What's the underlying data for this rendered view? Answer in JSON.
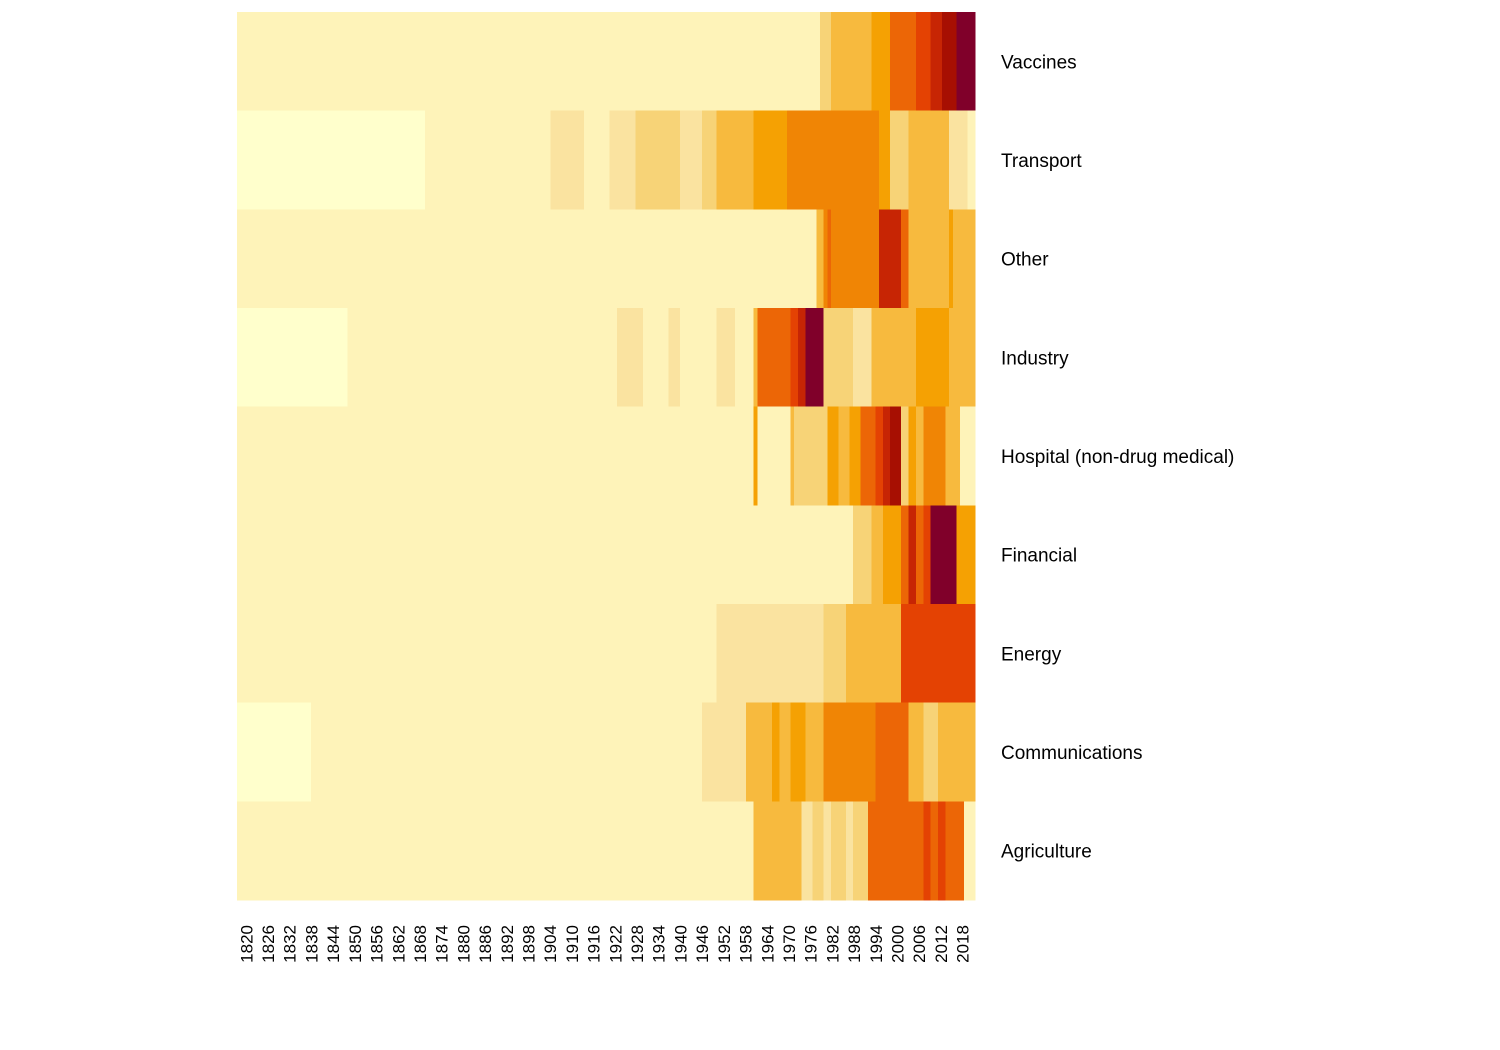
{
  "chart_data": {
    "type": "heatmap",
    "title": "",
    "xlabel": "",
    "ylabel": "",
    "x_start_year": 1820,
    "x_end_year": 2020,
    "x_tick_labels": [
      "1820",
      "1826",
      "1832",
      "1838",
      "1844",
      "1850",
      "1856",
      "1862",
      "1868",
      "1874",
      "1880",
      "1886",
      "1892",
      "1898",
      "1904",
      "1910",
      "1916",
      "1922",
      "1928",
      "1934",
      "1940",
      "1946",
      "1952",
      "1958",
      "1964",
      "1970",
      "1976",
      "1982",
      "1988",
      "1994",
      "2000",
      "2006",
      "2012",
      "2018"
    ],
    "legend": "none",
    "levels": [
      "#FFFFCC",
      "#FEF3B9",
      "#FAE3A0",
      "#F7D377",
      "#F7BA3E",
      "#F5A103",
      "#F08505",
      "#EC6606",
      "#E44203",
      "#C72504",
      "#A70F02",
      "#80002A"
    ],
    "rows": [
      {
        "label": "Vaccines",
        "runs": [
          [
            1820,
            1978,
            1
          ],
          [
            1978,
            1981,
            3
          ],
          [
            1981,
            1992,
            4
          ],
          [
            1992,
            1997,
            5
          ],
          [
            1997,
            2004,
            7
          ],
          [
            2004,
            2008,
            8
          ],
          [
            2008,
            2011,
            9
          ],
          [
            2011,
            2015,
            10
          ],
          [
            2015,
            2020,
            11
          ]
        ]
      },
      {
        "label": "Transport",
        "runs": [
          [
            1820,
            1871,
            0
          ],
          [
            1871,
            1905,
            1
          ],
          [
            1905,
            1914,
            2
          ],
          [
            1914,
            1921,
            1
          ],
          [
            1921,
            1928,
            2
          ],
          [
            1928,
            1940,
            3
          ],
          [
            1940,
            1946,
            2
          ],
          [
            1946,
            1950,
            3
          ],
          [
            1950,
            1960,
            4
          ],
          [
            1960,
            1969,
            5
          ],
          [
            1969,
            1976,
            6
          ],
          [
            1976,
            1983,
            6
          ],
          [
            1983,
            1994,
            6
          ],
          [
            1994,
            1997,
            5
          ],
          [
            1997,
            2002,
            3
          ],
          [
            2002,
            2013,
            4
          ],
          [
            2013,
            2018,
            2
          ],
          [
            2018,
            2020,
            1
          ]
        ]
      },
      {
        "label": "Other",
        "runs": [
          [
            1820,
            1977,
            1
          ],
          [
            1977,
            1979,
            4
          ],
          [
            1979,
            1980,
            6
          ],
          [
            1980,
            1981,
            7
          ],
          [
            1981,
            1983,
            6
          ],
          [
            1983,
            1994,
            6
          ],
          [
            1994,
            2000,
            9
          ],
          [
            2000,
            2002,
            7
          ],
          [
            2002,
            2013,
            4
          ],
          [
            2013,
            2014,
            5
          ],
          [
            2014,
            2020,
            4
          ]
        ]
      },
      {
        "label": "Industry",
        "runs": [
          [
            1820,
            1850,
            0
          ],
          [
            1850,
            1923,
            1
          ],
          [
            1923,
            1930,
            2
          ],
          [
            1930,
            1931,
            1
          ],
          [
            1931,
            1937,
            1
          ],
          [
            1937,
            1940,
            2
          ],
          [
            1940,
            1950,
            1
          ],
          [
            1950,
            1955,
            2
          ],
          [
            1955,
            1960,
            1
          ],
          [
            1960,
            1961,
            4
          ],
          [
            1961,
            1965,
            7
          ],
          [
            1965,
            1970,
            7
          ],
          [
            1970,
            1972,
            8
          ],
          [
            1972,
            1974,
            9
          ],
          [
            1974,
            1976,
            11
          ],
          [
            1976,
            1979,
            11
          ],
          [
            1979,
            1982,
            3
          ],
          [
            1982,
            1987,
            3
          ],
          [
            1987,
            1992,
            2
          ],
          [
            1992,
            2004,
            4
          ],
          [
            2004,
            2013,
            5
          ],
          [
            2013,
            2020,
            4
          ]
        ]
      },
      {
        "label": "Hospital (non-drug medical)",
        "runs": [
          [
            1820,
            1960,
            1
          ],
          [
            1960,
            1961,
            5
          ],
          [
            1961,
            1970,
            1
          ],
          [
            1970,
            1971,
            4
          ],
          [
            1971,
            1972,
            3
          ],
          [
            1972,
            1980,
            3
          ],
          [
            1980,
            1983,
            5
          ],
          [
            1983,
            1985,
            4
          ],
          [
            1985,
            1986,
            4
          ],
          [
            1986,
            1989,
            5
          ],
          [
            1989,
            1993,
            7
          ],
          [
            1993,
            1995,
            8
          ],
          [
            1995,
            1997,
            9
          ],
          [
            1997,
            2000,
            10
          ],
          [
            2000,
            2002,
            3
          ],
          [
            2002,
            2004,
            5
          ],
          [
            2004,
            2006,
            4
          ],
          [
            2006,
            2012,
            6
          ],
          [
            2012,
            2016,
            4
          ],
          [
            2016,
            2020,
            1
          ]
        ]
      },
      {
        "label": "Financial",
        "runs": [
          [
            1820,
            1987,
            1
          ],
          [
            1987,
            1992,
            3
          ],
          [
            1992,
            1995,
            4
          ],
          [
            1995,
            2000,
            5
          ],
          [
            2000,
            2002,
            7
          ],
          [
            2002,
            2004,
            9
          ],
          [
            2004,
            2006,
            7
          ],
          [
            2006,
            2008,
            8
          ],
          [
            2008,
            2012,
            11
          ],
          [
            2012,
            2015,
            11
          ],
          [
            2015,
            2016,
            5
          ],
          [
            2016,
            2020,
            5
          ]
        ]
      },
      {
        "label": "Energy",
        "runs": [
          [
            1820,
            1950,
            1
          ],
          [
            1950,
            1975,
            2
          ],
          [
            1975,
            1979,
            2
          ],
          [
            1979,
            1985,
            3
          ],
          [
            1985,
            2000,
            4
          ],
          [
            2000,
            2014,
            8
          ],
          [
            2014,
            2020,
            8
          ]
        ]
      },
      {
        "label": "Communications",
        "runs": [
          [
            1820,
            1840,
            0
          ],
          [
            1840,
            1946,
            1
          ],
          [
            1946,
            1958,
            2
          ],
          [
            1958,
            1960,
            4
          ],
          [
            1960,
            1965,
            4
          ],
          [
            1965,
            1967,
            5
          ],
          [
            1967,
            1970,
            4
          ],
          [
            1970,
            1974,
            5
          ],
          [
            1974,
            1979,
            4
          ],
          [
            1979,
            1993,
            6
          ],
          [
            1993,
            2002,
            7
          ],
          [
            2002,
            2006,
            4
          ],
          [
            2006,
            2008,
            3
          ],
          [
            2008,
            2010,
            3
          ],
          [
            2010,
            2014,
            4
          ],
          [
            2014,
            2020,
            4
          ]
        ]
      },
      {
        "label": "Agriculture",
        "runs": [
          [
            1820,
            1960,
            1
          ],
          [
            1960,
            1973,
            4
          ],
          [
            1973,
            1976,
            2
          ],
          [
            1976,
            1979,
            3
          ],
          [
            1979,
            1981,
            2
          ],
          [
            1981,
            1985,
            3
          ],
          [
            1985,
            1987,
            2
          ],
          [
            1987,
            1989,
            3
          ],
          [
            1989,
            1991,
            3
          ],
          [
            1991,
            2006,
            7
          ],
          [
            2006,
            2008,
            8
          ],
          [
            2008,
            2010,
            7
          ],
          [
            2010,
            2012,
            8
          ],
          [
            2012,
            2017,
            7
          ],
          [
            2017,
            2020,
            1
          ]
        ]
      }
    ]
  }
}
